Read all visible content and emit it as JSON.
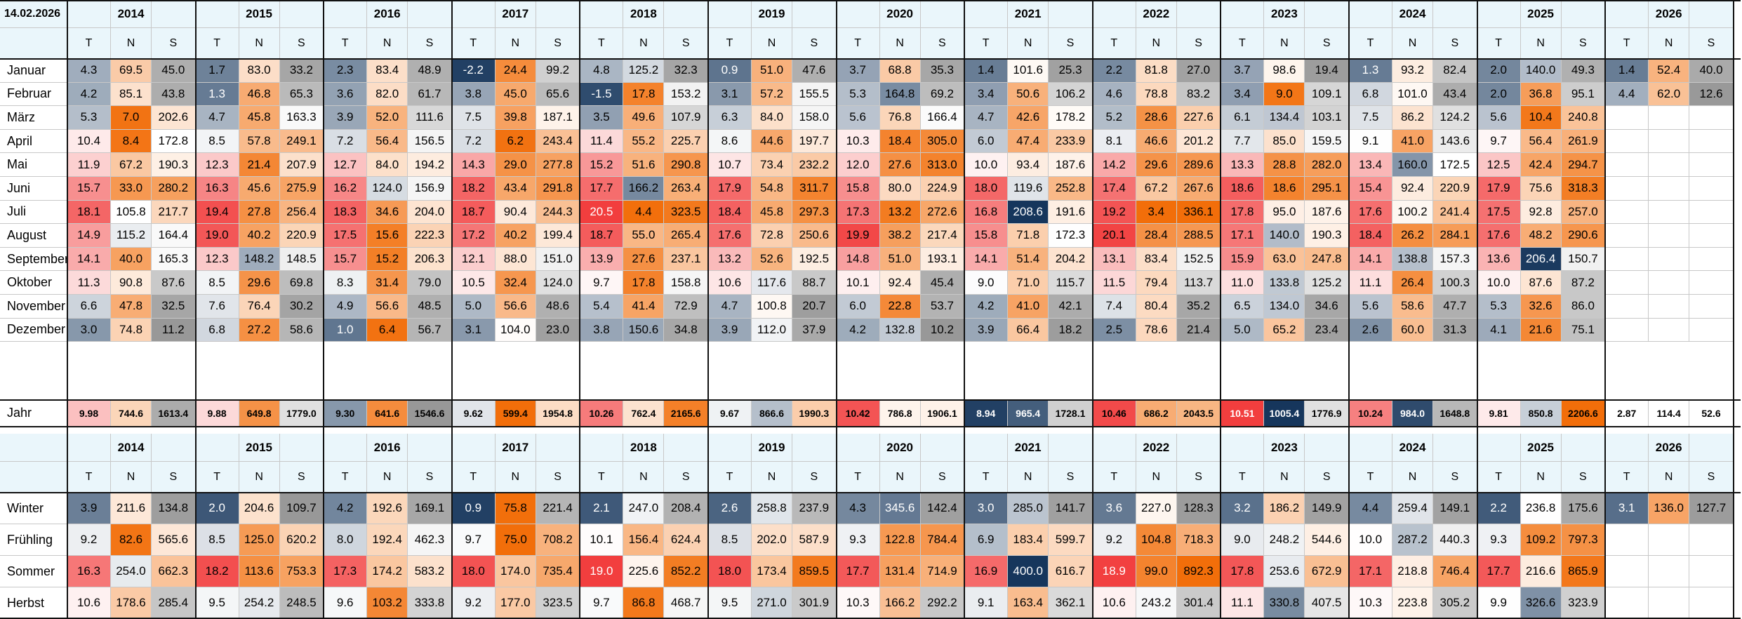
{
  "date": "14.02.2026",
  "years": [
    "2014",
    "2015",
    "2016",
    "2017",
    "2018",
    "2019",
    "2020",
    "2021",
    "2022",
    "2023",
    "2024",
    "2025",
    "2026"
  ],
  "sub_headers": [
    "T",
    "N",
    "S"
  ],
  "months": [
    {
      "label": "Januar",
      "v": [
        [
          "4.3",
          "69.5",
          "45.0"
        ],
        [
          "1.7",
          "83.0",
          "33.2"
        ],
        [
          "2.3",
          "83.4",
          "48.9"
        ],
        [
          "-2.2",
          "24.4",
          "99.2"
        ],
        [
          "4.8",
          "125.2",
          "32.3"
        ],
        [
          "0.9",
          "51.0",
          "47.6"
        ],
        [
          "3.7",
          "68.8",
          "35.3"
        ],
        [
          "1.4",
          "101.6",
          "25.3"
        ],
        [
          "2.2",
          "81.8",
          "27.0"
        ],
        [
          "3.7",
          "98.6",
          "19.4"
        ],
        [
          "1.3",
          "93.2",
          "82.4"
        ],
        [
          "2.0",
          "140.0",
          "49.3"
        ],
        [
          "1.4",
          "52.4",
          "40.0"
        ]
      ]
    },
    {
      "label": "Februar",
      "v": [
        [
          "4.2",
          "85.1",
          "43.8"
        ],
        [
          "1.3",
          "46.8",
          "65.3"
        ],
        [
          "3.6",
          "82.0",
          "61.7"
        ],
        [
          "3.8",
          "45.0",
          "65.6"
        ],
        [
          "-1.5",
          "17.8",
          "153.2"
        ],
        [
          "3.1",
          "57.2",
          "155.5"
        ],
        [
          "5.3",
          "164.8",
          "69.2"
        ],
        [
          "3.4",
          "50.6",
          "106.2"
        ],
        [
          "4.6",
          "78.8",
          "83.2"
        ],
        [
          "3.4",
          "9.0",
          "109.1"
        ],
        [
          "6.8",
          "101.0",
          "43.4"
        ],
        [
          "2.0",
          "36.8",
          "95.1"
        ],
        [
          "4.4",
          "62.0",
          "12.6"
        ]
      ]
    },
    {
      "label": "März",
      "v": [
        [
          "5.3",
          "7.0",
          "202.6"
        ],
        [
          "4.7",
          "45.8",
          "163.3"
        ],
        [
          "3.9",
          "52.0",
          "111.6"
        ],
        [
          "7.5",
          "39.8",
          "187.1"
        ],
        [
          "3.5",
          "49.6",
          "107.9"
        ],
        [
          "6.3",
          "84.0",
          "158.0"
        ],
        [
          "5.6",
          "76.8",
          "166.4"
        ],
        [
          "4.7",
          "42.6",
          "178.2"
        ],
        [
          "5.2",
          "28.6",
          "227.6"
        ],
        [
          "6.1",
          "134.4",
          "103.1"
        ],
        [
          "7.5",
          "86.2",
          "124.2"
        ],
        [
          "5.6",
          "10.4",
          "240.8"
        ],
        [
          "",
          "",
          ""
        ]
      ]
    },
    {
      "label": "April",
      "v": [
        [
          "10.4",
          "8.4",
          "172.8"
        ],
        [
          "8.5",
          "57.8",
          "249.1"
        ],
        [
          "7.2",
          "56.4",
          "156.5"
        ],
        [
          "7.2",
          "6.2",
          "243.4"
        ],
        [
          "11.4",
          "55.2",
          "225.7"
        ],
        [
          "8.6",
          "44.6",
          "197.7"
        ],
        [
          "10.3",
          "18.4",
          "305.0"
        ],
        [
          "6.0",
          "47.4",
          "233.9"
        ],
        [
          "8.1",
          "46.6",
          "201.2"
        ],
        [
          "7.7",
          "85.0",
          "159.5"
        ],
        [
          "9.1",
          "41.0",
          "143.6"
        ],
        [
          "9.7",
          "56.4",
          "261.9"
        ],
        [
          "",
          "",
          ""
        ]
      ]
    },
    {
      "label": "Mai",
      "v": [
        [
          "11.9",
          "67.2",
          "190.3"
        ],
        [
          "12.3",
          "21.4",
          "207.9"
        ],
        [
          "12.7",
          "84.0",
          "194.2"
        ],
        [
          "14.3",
          "29.0",
          "277.8"
        ],
        [
          "15.2",
          "51.6",
          "290.8"
        ],
        [
          "10.7",
          "73.4",
          "232.2"
        ],
        [
          "12.0",
          "27.6",
          "313.0"
        ],
        [
          "10.0",
          "93.4",
          "187.6"
        ],
        [
          "14.2",
          "29.6",
          "289.6"
        ],
        [
          "13.3",
          "28.8",
          "282.0"
        ],
        [
          "13.4",
          "160.0",
          "172.5"
        ],
        [
          "12.5",
          "42.4",
          "294.7"
        ],
        [
          "",
          "",
          ""
        ]
      ]
    },
    {
      "label": "Juni",
      "v": [
        [
          "15.7",
          "33.0",
          "280.2"
        ],
        [
          "16.3",
          "45.6",
          "275.9"
        ],
        [
          "16.2",
          "124.0",
          "156.9"
        ],
        [
          "18.2",
          "43.4",
          "291.8"
        ],
        [
          "17.7",
          "166.2",
          "263.4"
        ],
        [
          "17.9",
          "54.8",
          "311.7"
        ],
        [
          "15.8",
          "80.0",
          "224.9"
        ],
        [
          "18.0",
          "119.6",
          "252.8"
        ],
        [
          "17.4",
          "67.2",
          "267.6"
        ],
        [
          "18.6",
          "18.6",
          "295.1"
        ],
        [
          "15.4",
          "92.4",
          "220.9"
        ],
        [
          "17.9",
          "75.6",
          "318.3"
        ],
        [
          "",
          "",
          ""
        ]
      ]
    },
    {
      "label": "Juli",
      "v": [
        [
          "18.1",
          "105.8",
          "217.7"
        ],
        [
          "19.4",
          "27.8",
          "256.4"
        ],
        [
          "18.3",
          "34.6",
          "204.0"
        ],
        [
          "18.7",
          "90.4",
          "244.3"
        ],
        [
          "20.5",
          "4.4",
          "323.5"
        ],
        [
          "18.4",
          "45.8",
          "297.3"
        ],
        [
          "17.3",
          "13.2",
          "272.6"
        ],
        [
          "16.8",
          "208.6",
          "191.6"
        ],
        [
          "19.2",
          "3.4",
          "336.1"
        ],
        [
          "17.8",
          "95.0",
          "187.6"
        ],
        [
          "17.6",
          "100.2",
          "241.4"
        ],
        [
          "17.5",
          "92.8",
          "257.0"
        ],
        [
          "",
          "",
          ""
        ]
      ]
    },
    {
      "label": "August",
      "v": [
        [
          "14.9",
          "115.2",
          "164.4"
        ],
        [
          "19.0",
          "40.2",
          "220.9"
        ],
        [
          "17.5",
          "15.6",
          "222.3"
        ],
        [
          "17.2",
          "40.2",
          "199.4"
        ],
        [
          "18.7",
          "55.0",
          "265.4"
        ],
        [
          "17.6",
          "72.8",
          "250.6"
        ],
        [
          "19.9",
          "38.2",
          "217.4"
        ],
        [
          "15.8",
          "71.8",
          "172.3"
        ],
        [
          "20.1",
          "28.4",
          "288.5"
        ],
        [
          "17.1",
          "140.0",
          "190.3"
        ],
        [
          "18.4",
          "26.2",
          "284.1"
        ],
        [
          "17.6",
          "48.2",
          "290.6"
        ],
        [
          "",
          "",
          ""
        ]
      ]
    },
    {
      "label": "September",
      "v": [
        [
          "14.1",
          "40.0",
          "165.3"
        ],
        [
          "12.3",
          "148.2",
          "148.5"
        ],
        [
          "15.7",
          "15.2",
          "206.3"
        ],
        [
          "12.1",
          "88.0",
          "151.0"
        ],
        [
          "13.9",
          "27.6",
          "237.1"
        ],
        [
          "13.2",
          "52.6",
          "192.5"
        ],
        [
          "14.8",
          "51.0",
          "193.1"
        ],
        [
          "14.1",
          "51.4",
          "204.2"
        ],
        [
          "13.1",
          "83.4",
          "152.5"
        ],
        [
          "15.9",
          "63.0",
          "247.8"
        ],
        [
          "14.1",
          "138.8",
          "157.3"
        ],
        [
          "13.6",
          "206.4",
          "150.7"
        ],
        [
          "",
          "",
          ""
        ]
      ]
    },
    {
      "label": "Oktober",
      "v": [
        [
          "11.3",
          "90.8",
          "87.6"
        ],
        [
          "8.5",
          "29.6",
          "69.8"
        ],
        [
          "8.3",
          "31.4",
          "79.0"
        ],
        [
          "10.5",
          "32.4",
          "124.0"
        ],
        [
          "9.7",
          "17.8",
          "158.8"
        ],
        [
          "10.6",
          "117.6",
          "88.7"
        ],
        [
          "10.1",
          "92.4",
          "45.4"
        ],
        [
          "9.0",
          "71.0",
          "115.7"
        ],
        [
          "11.5",
          "79.4",
          "113.7"
        ],
        [
          "11.0",
          "133.8",
          "125.2"
        ],
        [
          "11.1",
          "26.4",
          "100.3"
        ],
        [
          "10.0",
          "87.6",
          "87.2"
        ],
        [
          "",
          "",
          ""
        ]
      ]
    },
    {
      "label": "November",
      "v": [
        [
          "6.6",
          "47.8",
          "32.5"
        ],
        [
          "7.6",
          "76.4",
          "30.2"
        ],
        [
          "4.9",
          "56.6",
          "48.5"
        ],
        [
          "5.0",
          "56.6",
          "48.6"
        ],
        [
          "5.4",
          "41.4",
          "72.9"
        ],
        [
          "4.7",
          "100.8",
          "20.7"
        ],
        [
          "6.0",
          "22.8",
          "53.7"
        ],
        [
          "4.2",
          "41.0",
          "42.1"
        ],
        [
          "7.4",
          "80.4",
          "35.2"
        ],
        [
          "6.5",
          "134.0",
          "34.6"
        ],
        [
          "5.6",
          "58.6",
          "47.7"
        ],
        [
          "5.3",
          "32.6",
          "86.0"
        ],
        [
          "",
          "",
          ""
        ]
      ]
    },
    {
      "label": "Dezember",
      "v": [
        [
          "3.0",
          "74.8",
          "11.2"
        ],
        [
          "6.8",
          "27.2",
          "58.6"
        ],
        [
          "1.0",
          "6.4",
          "56.7"
        ],
        [
          "3.1",
          "104.0",
          "23.0"
        ],
        [
          "3.8",
          "150.6",
          "34.8"
        ],
        [
          "3.9",
          "112.0",
          "37.9"
        ],
        [
          "4.2",
          "132.8",
          "10.2"
        ],
        [
          "3.9",
          "66.4",
          "18.2"
        ],
        [
          "2.5",
          "78.6",
          "21.4"
        ],
        [
          "5.0",
          "65.2",
          "23.4"
        ],
        [
          "2.6",
          "60.0",
          "31.3"
        ],
        [
          "4.1",
          "21.6",
          "75.1"
        ],
        [
          "",
          "",
          ""
        ]
      ]
    }
  ],
  "jahr": {
    "label": "Jahr",
    "v": [
      [
        "9.98",
        "744.6",
        "1613.4"
      ],
      [
        "9.88",
        "649.8",
        "1779.0"
      ],
      [
        "9.30",
        "641.6",
        "1546.6"
      ],
      [
        "9.62",
        "599.4",
        "1954.8"
      ],
      [
        "10.26",
        "762.4",
        "2165.6"
      ],
      [
        "9.67",
        "866.6",
        "1990.3"
      ],
      [
        "10.42",
        "786.8",
        "1906.1"
      ],
      [
        "8.94",
        "965.4",
        "1728.1"
      ],
      [
        "10.46",
        "686.2",
        "2043.5"
      ],
      [
        "10.51",
        "1005.4",
        "1776.9"
      ],
      [
        "10.24",
        "984.0",
        "1648.8"
      ],
      [
        "9.81",
        "850.8",
        "2206.6"
      ],
      [
        "2.87",
        "114.4",
        "52.6"
      ]
    ]
  },
  "seasons": [
    {
      "label": "Winter",
      "v": [
        [
          "3.9",
          "211.6",
          "134.8"
        ],
        [
          "2.0",
          "204.6",
          "109.7"
        ],
        [
          "4.2",
          "192.6",
          "169.1"
        ],
        [
          "0.9",
          "75.8",
          "221.4"
        ],
        [
          "2.1",
          "247.0",
          "208.4"
        ],
        [
          "2.6",
          "258.8",
          "237.9"
        ],
        [
          "4.3",
          "345.6",
          "142.4"
        ],
        [
          "3.0",
          "285.0",
          "141.7"
        ],
        [
          "3.6",
          "227.0",
          "128.3"
        ],
        [
          "3.2",
          "186.2",
          "149.9"
        ],
        [
          "4.4",
          "259.4",
          "149.1"
        ],
        [
          "2.2",
          "236.8",
          "175.6"
        ],
        [
          "3.1",
          "136.0",
          "127.7"
        ]
      ]
    },
    {
      "label": "Frühling",
      "v": [
        [
          "9.2",
          "82.6",
          "565.6"
        ],
        [
          "8.5",
          "125.0",
          "620.2"
        ],
        [
          "8.0",
          "192.4",
          "462.3"
        ],
        [
          "9.7",
          "75.0",
          "708.2"
        ],
        [
          "10.1",
          "156.4",
          "624.4"
        ],
        [
          "8.5",
          "202.0",
          "587.9"
        ],
        [
          "9.3",
          "122.8",
          "784.4"
        ],
        [
          "6.9",
          "183.4",
          "599.7"
        ],
        [
          "9.2",
          "104.8",
          "718.3"
        ],
        [
          "9.0",
          "248.2",
          "544.6"
        ],
        [
          "10.0",
          "287.2",
          "440.3"
        ],
        [
          "9.3",
          "109.2",
          "797.3"
        ],
        [
          "",
          "",
          ""
        ]
      ]
    },
    {
      "label": "Sommer",
      "v": [
        [
          "16.3",
          "254.0",
          "662.3"
        ],
        [
          "18.2",
          "113.6",
          "753.3"
        ],
        [
          "17.3",
          "174.2",
          "583.2"
        ],
        [
          "18.0",
          "174.0",
          "735.4"
        ],
        [
          "19.0",
          "225.6",
          "852.2"
        ],
        [
          "18.0",
          "173.4",
          "859.5"
        ],
        [
          "17.7",
          "131.4",
          "714.9"
        ],
        [
          "16.9",
          "400.0",
          "616.7"
        ],
        [
          "18.9",
          "99.0",
          "892.3"
        ],
        [
          "17.8",
          "253.6",
          "672.9"
        ],
        [
          "17.1",
          "218.8",
          "746.4"
        ],
        [
          "17.7",
          "216.6",
          "865.9"
        ],
        [
          "",
          "",
          ""
        ]
      ]
    },
    {
      "label": "Herbst",
      "v": [
        [
          "10.6",
          "178.6",
          "285.4"
        ],
        [
          "9.5",
          "254.2",
          "248.5"
        ],
        [
          "9.6",
          "103.2",
          "333.8"
        ],
        [
          "9.2",
          "177.0",
          "323.5"
        ],
        [
          "9.7",
          "86.8",
          "468.7"
        ],
        [
          "9.5",
          "271.0",
          "301.9"
        ],
        [
          "10.3",
          "166.2",
          "292.2"
        ],
        [
          "9.1",
          "163.4",
          "362.1"
        ],
        [
          "10.6",
          "243.2",
          "301.4"
        ],
        [
          "11.1",
          "330.8",
          "407.5"
        ],
        [
          "10.3",
          "223.8",
          "305.2"
        ],
        [
          "9.9",
          "326.6",
          "323.9"
        ],
        [
          "",
          "",
          ""
        ]
      ]
    }
  ]
}
